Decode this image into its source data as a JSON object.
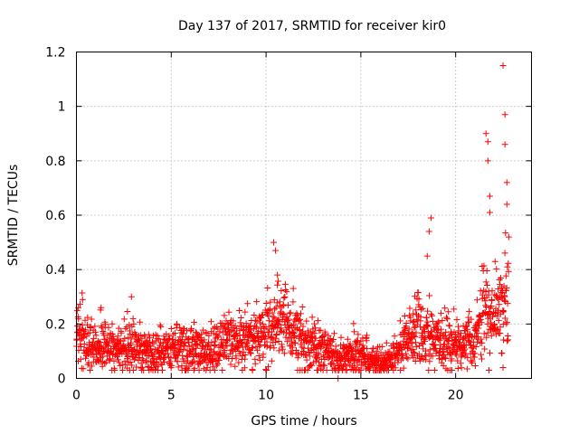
{
  "chart_data": {
    "type": "scatter",
    "title": "Day 137 of 2017, SRMTID for receiver kir0",
    "xlabel": "GPS time / hours",
    "ylabel": "SRMTID / TECUs",
    "xlim": [
      0,
      24
    ],
    "ylim": [
      0,
      1.2
    ],
    "grid": true,
    "marker": "+",
    "marker_color": "#ff0000",
    "x_ticks": [
      0,
      5,
      10,
      15,
      20
    ],
    "x_tick_labels": [
      "0",
      "5",
      "10",
      "15",
      "20"
    ],
    "y_ticks": [
      0,
      0.2,
      0.4,
      0.6,
      0.8,
      1.0,
      1.2
    ],
    "y_tick_labels": [
      "0",
      "0.2",
      "0.4",
      "0.6",
      "0.8",
      "1",
      "1.2"
    ],
    "baseline_profile": [
      [
        0.0,
        0.16
      ],
      [
        0.5,
        0.14
      ],
      [
        1.0,
        0.11
      ],
      [
        1.5,
        0.12
      ],
      [
        2.0,
        0.1
      ],
      [
        2.5,
        0.12
      ],
      [
        3.0,
        0.13
      ],
      [
        3.5,
        0.1
      ],
      [
        4.0,
        0.09
      ],
      [
        4.5,
        0.09
      ],
      [
        5.0,
        0.11
      ],
      [
        5.5,
        0.11
      ],
      [
        6.0,
        0.1
      ],
      [
        6.5,
        0.1
      ],
      [
        7.0,
        0.1
      ],
      [
        7.5,
        0.12
      ],
      [
        8.0,
        0.14
      ],
      [
        8.5,
        0.14
      ],
      [
        9.0,
        0.15
      ],
      [
        9.5,
        0.16
      ],
      [
        10.0,
        0.16
      ],
      [
        10.5,
        0.2
      ],
      [
        11.0,
        0.22
      ],
      [
        11.5,
        0.15
      ],
      [
        12.0,
        0.13
      ],
      [
        12.5,
        0.12
      ],
      [
        13.0,
        0.1
      ],
      [
        13.5,
        0.08
      ],
      [
        14.0,
        0.06
      ],
      [
        14.5,
        0.09
      ],
      [
        15.0,
        0.08
      ],
      [
        15.5,
        0.07
      ],
      [
        16.0,
        0.06
      ],
      [
        16.5,
        0.07
      ],
      [
        17.0,
        0.1
      ],
      [
        17.5,
        0.15
      ],
      [
        18.0,
        0.18
      ],
      [
        18.5,
        0.16
      ],
      [
        19.0,
        0.14
      ],
      [
        19.5,
        0.13
      ],
      [
        20.0,
        0.12
      ],
      [
        20.5,
        0.14
      ],
      [
        21.0,
        0.13
      ],
      [
        21.5,
        0.25
      ],
      [
        22.0,
        0.22
      ],
      [
        22.5,
        0.28
      ],
      [
        22.8,
        0.24
      ]
    ],
    "highlighted_points": [
      [
        0.1,
        0.26
      ],
      [
        1.3,
        0.26
      ],
      [
        2.9,
        0.3
      ],
      [
        10.4,
        0.5
      ],
      [
        10.5,
        0.47
      ],
      [
        10.6,
        0.38
      ],
      [
        18.7,
        0.59
      ],
      [
        18.6,
        0.54
      ],
      [
        18.5,
        0.45
      ],
      [
        21.6,
        0.9
      ],
      [
        21.7,
        0.87
      ],
      [
        21.7,
        0.8
      ],
      [
        21.8,
        0.67
      ],
      [
        21.8,
        0.61
      ],
      [
        22.5,
        1.15
      ],
      [
        22.6,
        0.97
      ],
      [
        22.6,
        0.86
      ],
      [
        22.7,
        0.72
      ],
      [
        22.7,
        0.64
      ],
      [
        22.8,
        0.52
      ],
      [
        22.5,
        0.04
      ],
      [
        13.8,
        0.0
      ]
    ]
  }
}
